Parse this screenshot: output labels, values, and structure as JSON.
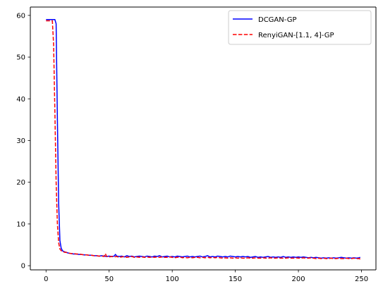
{
  "chart_data": {
    "type": "line",
    "title": "",
    "xlabel": "",
    "ylabel": "",
    "xlim": [
      -12.45,
      261.45
    ],
    "ylim": [
      -1.0,
      62.0
    ],
    "xticks": [
      0,
      50,
      100,
      150,
      200,
      250
    ],
    "yticks": [
      0,
      10,
      20,
      30,
      40,
      50,
      60
    ],
    "xtick_labels": [
      "0",
      "50",
      "100",
      "150",
      "200",
      "250"
    ],
    "ytick_labels": [
      "0",
      "10",
      "20",
      "30",
      "40",
      "50",
      "60"
    ],
    "grid": false,
    "legend_position": "top-right",
    "series": [
      {
        "name": "DCGAN-GP",
        "color": "#0000ff",
        "style": "solid",
        "x": [
          0,
          1,
          2,
          3,
          4,
          5,
          6,
          7,
          8,
          9,
          10,
          11,
          12,
          13,
          14,
          15,
          16,
          17,
          18,
          20,
          22,
          24,
          26,
          28,
          30,
          32,
          34,
          36,
          38,
          40,
          42,
          44,
          46,
          48,
          50,
          52,
          54,
          55,
          56,
          58,
          60,
          62,
          64,
          66,
          68,
          70,
          72,
          74,
          76,
          78,
          80,
          82,
          84,
          86,
          88,
          90,
          92,
          94,
          96,
          98,
          100,
          102,
          104,
          106,
          108,
          110,
          112,
          114,
          116,
          118,
          120,
          122,
          124,
          126,
          128,
          130,
          132,
          134,
          136,
          138,
          140,
          142,
          144,
          146,
          148,
          150,
          152,
          154,
          156,
          158,
          160,
          162,
          164,
          166,
          168,
          170,
          172,
          174,
          176,
          178,
          180,
          182,
          184,
          186,
          188,
          190,
          192,
          194,
          196,
          198,
          200,
          202,
          204,
          206,
          208,
          210,
          212,
          214,
          216,
          218,
          220,
          222,
          224,
          226,
          228,
          230,
          232,
          234,
          236,
          238,
          240,
          242,
          244,
          246,
          248,
          249
        ],
        "y": [
          59,
          59,
          59,
          59,
          59,
          59,
          59,
          59,
          58,
          35,
          15,
          6,
          4.2,
          3.6,
          3.4,
          3.3,
          3.2,
          3.1,
          3.0,
          2.9,
          2.8,
          2.8,
          2.7,
          2.7,
          2.6,
          2.6,
          2.5,
          2.5,
          2.4,
          2.4,
          2.3,
          2.4,
          2.3,
          2.2,
          2.3,
          2.2,
          2.3,
          2.7,
          2.3,
          2.2,
          2.3,
          2.1,
          2.4,
          2.2,
          2.3,
          2.1,
          2.2,
          2.3,
          2.2,
          2.1,
          2.3,
          2.2,
          2.1,
          2.3,
          2.2,
          2.4,
          2.1,
          2.2,
          2.3,
          2.1,
          2.2,
          2.1,
          2.3,
          2.2,
          2.1,
          2.2,
          2.3,
          2.1,
          2.2,
          2.1,
          2.2,
          2.3,
          2.1,
          2.2,
          2.4,
          2.1,
          2.2,
          2.1,
          2.3,
          2.2,
          2.1,
          2.2,
          2.1,
          2.3,
          2.2,
          2.1,
          2.2,
          2.1,
          2.2,
          2.1,
          2.2,
          2.0,
          2.1,
          2.2,
          2.0,
          2.1,
          2.0,
          2.1,
          2.2,
          2.0,
          2.1,
          2.0,
          2.1,
          2.0,
          2.2,
          2.0,
          2.1,
          2.0,
          2.1,
          2.0,
          2.1,
          2.0,
          2.1,
          2.0,
          1.9,
          2.0,
          1.9,
          2.0,
          1.9,
          1.8,
          1.9,
          1.8,
          1.9,
          1.8,
          1.9,
          1.8,
          1.9,
          2.0,
          1.9,
          1.8,
          1.9,
          1.8,
          1.9,
          1.8,
          1.9,
          2.0
        ]
      },
      {
        "name": "RenyiGAN-[1.1, 4]-GP",
        "color": "#ff0000",
        "style": "dashed",
        "x": [
          0,
          1,
          2,
          3,
          4,
          5,
          6,
          7,
          8,
          9,
          10,
          11,
          12,
          13,
          14,
          15,
          16,
          17,
          18,
          20,
          22,
          24,
          26,
          28,
          30,
          32,
          34,
          36,
          38,
          40,
          42,
          44,
          46,
          47,
          48,
          50,
          52,
          54,
          56,
          58,
          60,
          62,
          64,
          66,
          68,
          70,
          72,
          74,
          76,
          78,
          80,
          82,
          84,
          86,
          88,
          90,
          92,
          94,
          96,
          98,
          100,
          102,
          104,
          106,
          108,
          110,
          112,
          114,
          116,
          118,
          120,
          122,
          124,
          126,
          128,
          130,
          132,
          134,
          136,
          138,
          140,
          142,
          144,
          146,
          148,
          150,
          152,
          154,
          156,
          158,
          160,
          162,
          164,
          166,
          168,
          170,
          172,
          174,
          176,
          178,
          180,
          182,
          184,
          186,
          188,
          190,
          192,
          194,
          196,
          198,
          200,
          202,
          204,
          206,
          208,
          210,
          212,
          214,
          216,
          218,
          220,
          222,
          224,
          226,
          228,
          230,
          232,
          234,
          236,
          238,
          240,
          242,
          244,
          246,
          248,
          249
        ],
        "y": [
          58.7,
          58.7,
          58.7,
          58.7,
          58.7,
          58.7,
          53,
          37,
          20,
          10,
          5.5,
          4.0,
          3.6,
          3.4,
          3.3,
          3.2,
          3.2,
          3.1,
          3.0,
          2.9,
          2.9,
          2.8,
          2.8,
          2.7,
          2.6,
          2.6,
          2.5,
          2.5,
          2.4,
          2.4,
          2.3,
          2.3,
          2.2,
          2.9,
          2.2,
          2.1,
          2.2,
          2.1,
          2.2,
          2.0,
          2.1,
          2.2,
          2.0,
          2.1,
          2.2,
          2.0,
          2.1,
          2.0,
          2.1,
          2.0,
          2.1,
          2.0,
          2.1,
          2.0,
          2.1,
          2.0,
          2.1,
          2.0,
          2.0,
          2.1,
          2.0,
          1.9,
          2.0,
          2.1,
          1.9,
          2.0,
          1.9,
          2.0,
          1.9,
          2.0,
          2.0,
          1.9,
          2.0,
          1.9,
          2.0,
          1.9,
          2.0,
          1.9,
          2.0,
          1.9,
          1.8,
          1.9,
          1.8,
          1.9,
          1.8,
          1.9,
          1.8,
          1.9,
          1.8,
          1.8,
          1.9,
          1.8,
          1.8,
          1.9,
          1.8,
          1.8,
          1.9,
          1.8,
          1.8,
          1.9,
          1.8,
          1.8,
          1.9,
          1.8,
          1.8,
          1.8,
          1.9,
          1.8,
          1.8,
          1.9,
          1.8,
          1.8,
          1.9,
          1.8,
          1.8,
          1.9,
          1.8,
          1.7,
          1.8,
          1.7,
          1.8,
          1.7,
          1.7,
          1.8,
          1.7,
          1.7,
          1.8,
          1.7,
          1.7,
          1.8,
          1.7,
          1.7,
          1.8,
          1.7,
          1.7,
          1.6
        ]
      }
    ]
  }
}
